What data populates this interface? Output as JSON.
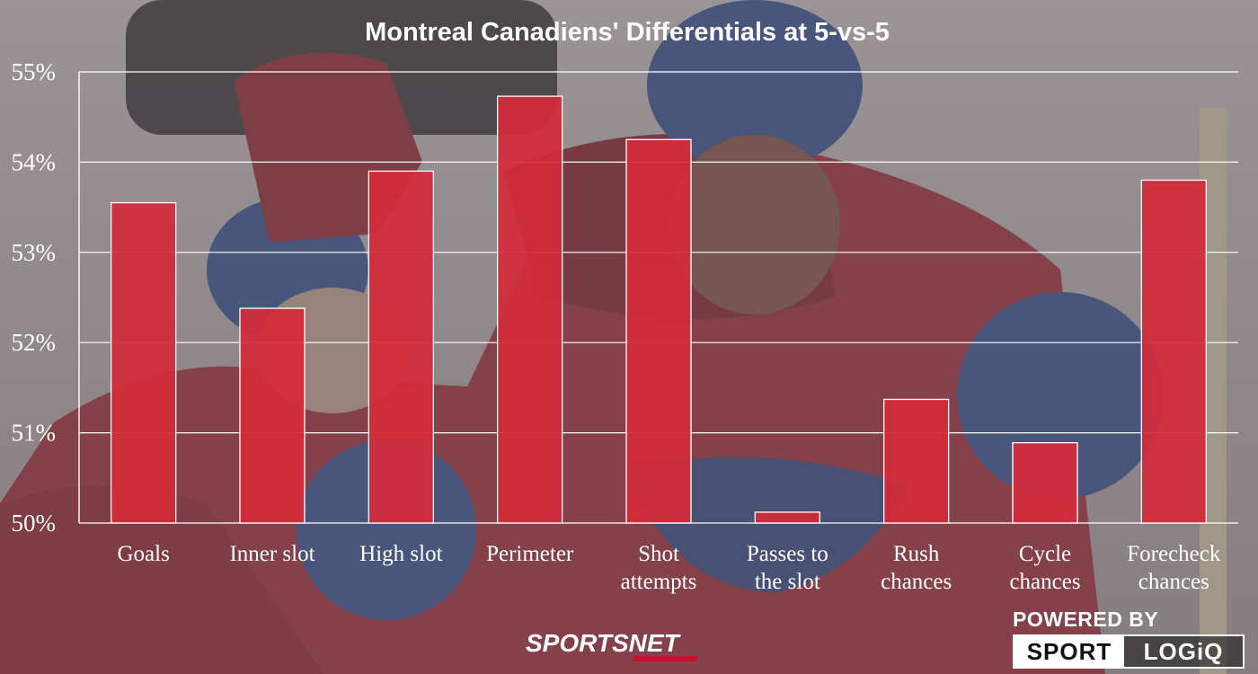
{
  "chart_data": {
    "type": "bar",
    "title": "Montreal Canadiens' Differentials at 5-vs-5",
    "categories": [
      [
        "Goals"
      ],
      [
        "Inner slot"
      ],
      [
        "High slot"
      ],
      [
        "Perimeter"
      ],
      [
        "Shot",
        "attempts"
      ],
      [
        "Passes to",
        "the slot"
      ],
      [
        "Rush",
        "chances"
      ],
      [
        "Cycle",
        "chances"
      ],
      [
        "Forecheck",
        "chances"
      ]
    ],
    "values": [
      53.55,
      52.38,
      53.9,
      54.73,
      54.25,
      50.12,
      51.37,
      50.89,
      53.8
    ],
    "ylim": [
      50,
      55
    ],
    "yticks": [
      "50%",
      "51%",
      "52%",
      "53%",
      "54%",
      "55%"
    ],
    "grid": true,
    "bar_color": "#d42a3a"
  },
  "branding": {
    "sportsnet": "SPORTSNET",
    "powered_by": "POWERED BY",
    "sport": "SPORT",
    "logiq": "LOGiQ"
  }
}
